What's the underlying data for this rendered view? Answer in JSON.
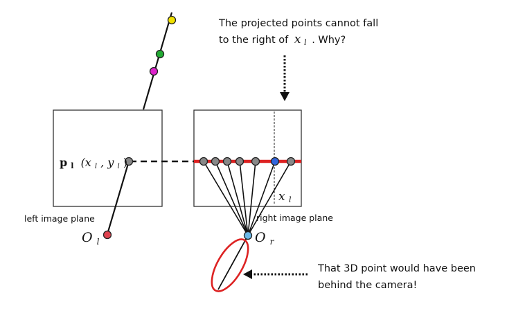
{
  "annotations": {
    "top_line1": "The projected points cannot fall",
    "top_line2_prefix": "to the right of",
    "top_line2_symbol": "x",
    "top_line2_subscript": "l",
    "top_line2_suffix": ". Why?",
    "bottom_line1": "That 3D point would have been",
    "bottom_line2": "behind the camera!"
  },
  "labels": {
    "left_plane": "left image plane",
    "right_plane": "right image plane",
    "point_bold": "p",
    "point_bold_sub": "l",
    "point_coords": "(x",
    "point_coords_sub1": "l",
    "point_coords_mid": ", y",
    "point_coords_sub2": "l",
    "point_coords_end": ")",
    "left_center": "O",
    "left_center_sub": "l",
    "right_center": "O",
    "right_center_sub": "r",
    "x_mark": "x",
    "x_mark_sub": "l"
  },
  "colors": {
    "epipolar_line": "#dd2222",
    "highlight_ellipse": "#dd2222",
    "left_center_dot": "#e0424f",
    "right_center_dot": "#6ab8e8",
    "projected_blue_dot": "#3366dd",
    "gray_dot": "#888888",
    "yellow_dot": "#f0e000",
    "green_dot": "#22aa33",
    "magenta_dot": "#dd22cc"
  }
}
